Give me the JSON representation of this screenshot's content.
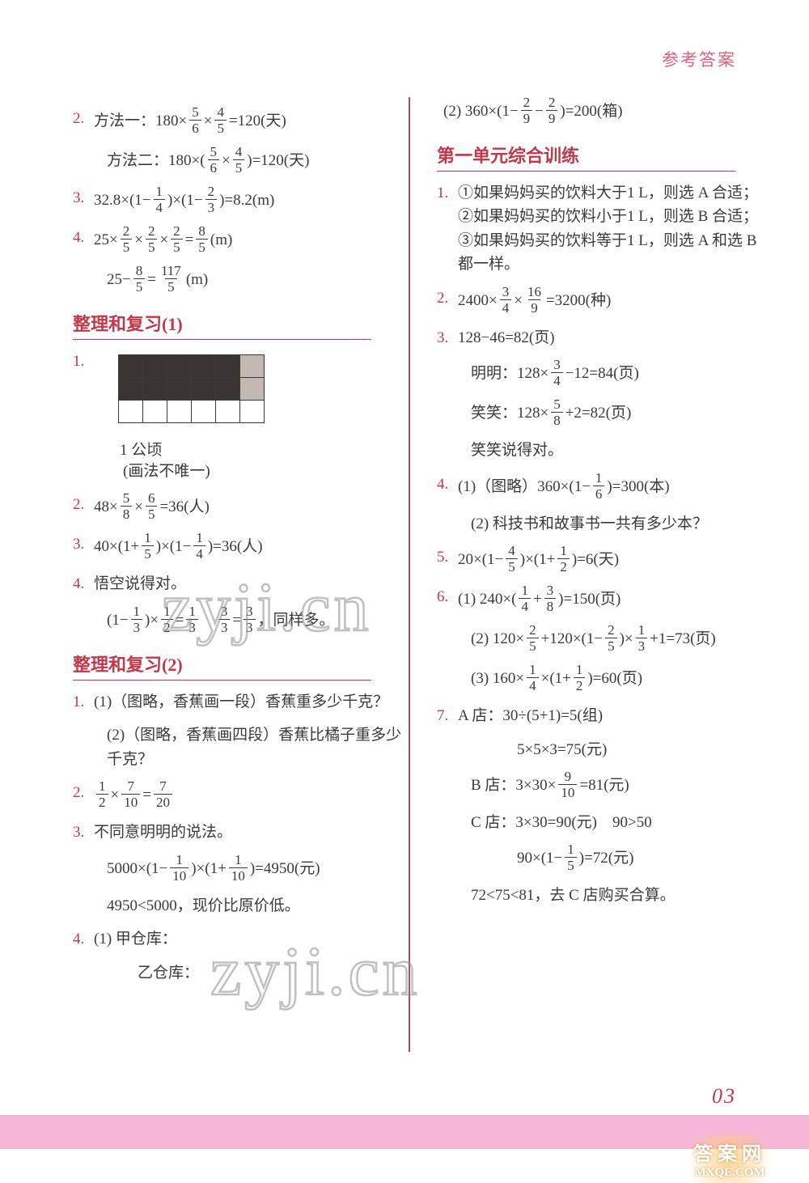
{
  "header": {
    "title": "参考答案"
  },
  "page_number": "03",
  "left": {
    "items": [
      {
        "n": "2.",
        "lines": [
          "方法一：180×[[5/6]]×[[4/5]]=120(天)",
          "方法二：180×([[5/6]]×[[4/5]])=120(天)"
        ]
      },
      {
        "n": "3.",
        "lines": [
          "32.8×(1−[[1/4]])×(1−[[2/3]])=8.2(m)"
        ]
      },
      {
        "n": "4.",
        "lines": [
          "25×[[2/5]]×[[2/5]]×[[2/5]]=[[8/5]](m)",
          "25−[[8/5]]=[[117/5]](m)"
        ]
      }
    ],
    "section1": {
      "title": "整理和复习(1)",
      "grid_caption": "1 公顷",
      "grid_note": "(画法不唯一)",
      "grid": {
        "rows": 3,
        "cols": 6,
        "cells": [
          [
            "dk",
            "dk",
            "dk",
            "dk",
            "dk",
            "lt"
          ],
          [
            "dk",
            "dk",
            "dk",
            "dk",
            "dk",
            "lt"
          ],
          [
            "wh",
            "wh",
            "wh",
            "wh",
            "wh",
            "wh"
          ]
        ]
      },
      "items": [
        {
          "n": "2.",
          "lines": [
            "48×[[5/8]]×[[6/5]]=36(人)"
          ]
        },
        {
          "n": "3.",
          "lines": [
            "40×(1+[[1/5]])×(1−[[1/4]])=36(人)"
          ]
        },
        {
          "n": "4.",
          "lines": [
            "悟空说得对。",
            "(1−[[1/3]])×[[1/2]]=[[1/3]]　[[3/3]]=[[3/3]]，同样多。"
          ]
        }
      ]
    },
    "section2": {
      "title": "整理和复习(2)",
      "items": [
        {
          "n": "1.",
          "lines": [
            "(1)（图略，香蕉画一段）香蕉重多少千克？",
            "(2)（图略，香蕉画四段）香蕉比橘子重多少千克？"
          ]
        },
        {
          "n": "2.",
          "lines": [
            "[[1/2]]×[[7/10]]=[[7/20]]"
          ]
        },
        {
          "n": "3.",
          "lines": [
            "不同意明明的说法。",
            "5000×(1−[[1/10]])×(1+[[1/10]])=4950(元)",
            "4950<5000，现价比原价低。"
          ]
        },
        {
          "n": "4.",
          "lines": [
            "(1) 甲仓库：",
            "　　乙仓库："
          ]
        }
      ]
    }
  },
  "right": {
    "top": [
      "(2) 360×(1−[[2/9]]−[[2/9]])=200(箱)"
    ],
    "section": {
      "title": "第一单元综合训练",
      "items": [
        {
          "n": "1.",
          "lines": [
            "①如果妈妈买的饮料大于1 L，则选 A 合适；②如果妈妈买的饮料小于1 L，则选 B 合适；③如果妈妈买的饮料等于1 L，则选 A 和选 B 都一样。"
          ]
        },
        {
          "n": "2.",
          "lines": [
            "2400×[[3/4]]×[[16/9]]=3200(种)"
          ]
        },
        {
          "n": "3.",
          "lines": [
            "128−46=82(页)",
            "明明：128×[[3/4]]−12=84(页)",
            "笑笑：128×[[5/8]]+2=82(页)",
            "笑笑说得对。"
          ]
        },
        {
          "n": "4.",
          "lines": [
            "(1)（图略）360×(1−[[1/6]])=300(本)",
            "(2) 科技书和故事书一共有多少本？"
          ]
        },
        {
          "n": "5.",
          "lines": [
            "20×(1−[[4/5]])×(1+[[1/2]])=6(天)"
          ]
        },
        {
          "n": "6.",
          "lines": [
            "(1) 240×([[1/4]]+[[3/8]])=150(页)",
            "(2) 120×[[2/5]]+120×(1−[[2/5]])×[[1/3]]+1=73(页)",
            "(3) 160×[[1/4]]×(1+[[1/2]])=60(页)"
          ]
        },
        {
          "n": "7.",
          "lines": [
            "A 店：30÷(5+1)=5(组)",
            "　　　5×5×3=75(元)",
            "B 店：3×30×[[9/10]]=81(元)",
            "C 店：3×30=90(元)　90>50",
            "　　　90×(1−[[1/5]])=72(元)",
            "72<75<81，去 C 店购买合算。"
          ]
        }
      ]
    }
  },
  "watermarks": {
    "text1": "zyji.cn",
    "text2": "zyji.cn"
  },
  "badge": {
    "line1": "答案网",
    "line2": "MXQE.COM"
  }
}
